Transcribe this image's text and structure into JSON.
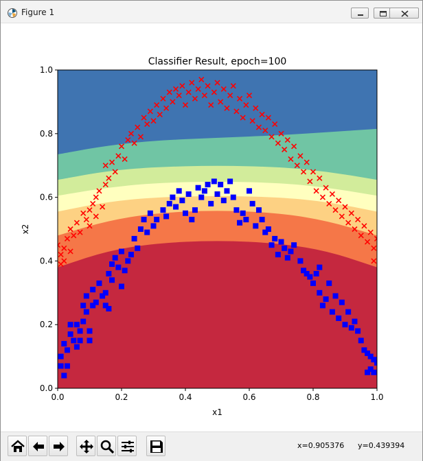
{
  "window": {
    "title": "Figure 1"
  },
  "toolbar": {
    "buttons": [
      "home-icon",
      "back-arrow-icon",
      "forward-arrow-icon",
      "pan-icon",
      "zoom-icon",
      "configure-subplots-icon",
      "save-icon"
    ],
    "coord_x": "x=0.905376",
    "coord_y": "y=0.439394"
  },
  "colors": {
    "class0_marker": "#0000ff",
    "class1_marker": "#ff0000",
    "contour_levels": [
      "#c5283f",
      "#f57748",
      "#fdd183",
      "#ffffbf",
      "#d2ec9b",
      "#70c5a4",
      "#3f74b1"
    ]
  },
  "chart_data": {
    "type": "scatter",
    "title": "Classifier Result, epoch=100",
    "xlabel": "x1",
    "ylabel": "x2",
    "xlim": [
      0.0,
      1.0
    ],
    "ylim": [
      0.0,
      1.0
    ],
    "xticks": [
      "0.0",
      "0.2",
      "0.4",
      "0.6",
      "0.8",
      "1.0"
    ],
    "yticks": [
      "0.0",
      "0.2",
      "0.4",
      "0.6",
      "0.8",
      "1.0"
    ],
    "grid": false,
    "legend": "none",
    "background": "filled decision contour, boundary curves peak near x1=0.5",
    "boundaries": [
      {
        "upper_color": "#f57748",
        "points": [
          [
            0.0,
            0.38
          ],
          [
            0.15,
            0.43
          ],
          [
            0.3,
            0.455
          ],
          [
            0.5,
            0.465
          ],
          [
            0.7,
            0.455
          ],
          [
            0.85,
            0.43
          ],
          [
            1.0,
            0.38
          ]
        ]
      },
      {
        "upper_color": "#fdd183",
        "points": [
          [
            0.0,
            0.48
          ],
          [
            0.15,
            0.525
          ],
          [
            0.3,
            0.55
          ],
          [
            0.5,
            0.56
          ],
          [
            0.7,
            0.55
          ],
          [
            0.85,
            0.525
          ],
          [
            1.0,
            0.48
          ]
        ]
      },
      {
        "upper_color": "#ffffbf",
        "points": [
          [
            0.0,
            0.555
          ],
          [
            0.15,
            0.585
          ],
          [
            0.3,
            0.6
          ],
          [
            0.5,
            0.605
          ],
          [
            0.7,
            0.6
          ],
          [
            0.85,
            0.585
          ],
          [
            1.0,
            0.555
          ]
        ]
      },
      {
        "upper_color": "#d2ec9b",
        "points": [
          [
            0.0,
            0.605
          ],
          [
            0.15,
            0.63
          ],
          [
            0.3,
            0.645
          ],
          [
            0.5,
            0.65
          ],
          [
            0.7,
            0.645
          ],
          [
            0.85,
            0.63
          ],
          [
            1.0,
            0.605
          ]
        ]
      },
      {
        "upper_color": "#70c5a4",
        "points": [
          [
            0.0,
            0.655
          ],
          [
            0.15,
            0.682
          ],
          [
            0.3,
            0.695
          ],
          [
            0.5,
            0.7
          ],
          [
            0.7,
            0.695
          ],
          [
            0.85,
            0.68
          ],
          [
            1.0,
            0.655
          ]
        ]
      },
      {
        "upper_color": "#3f74b1",
        "points": [
          [
            0.0,
            0.735
          ],
          [
            0.15,
            0.762
          ],
          [
            0.3,
            0.778
          ],
          [
            0.5,
            0.787
          ],
          [
            0.7,
            0.795
          ],
          [
            0.85,
            0.805
          ],
          [
            1.0,
            0.815
          ]
        ]
      }
    ],
    "series": [
      {
        "marker": "square",
        "color": "#0000ff",
        "points": [
          [
            0.01,
            0.07
          ],
          [
            0.01,
            0.1
          ],
          [
            0.02,
            0.04
          ],
          [
            0.03,
            0.07
          ],
          [
            0.02,
            0.14
          ],
          [
            0.03,
            0.12
          ],
          [
            0.04,
            0.17
          ],
          [
            0.05,
            0.15
          ],
          [
            0.04,
            0.2
          ],
          [
            0.06,
            0.13
          ],
          [
            0.06,
            0.2
          ],
          [
            0.07,
            0.18
          ],
          [
            0.07,
            0.15
          ],
          [
            0.08,
            0.21
          ],
          [
            0.08,
            0.26
          ],
          [
            0.09,
            0.24
          ],
          [
            0.1,
            0.15
          ],
          [
            0.1,
            0.18
          ],
          [
            0.09,
            0.29
          ],
          [
            0.11,
            0.26
          ],
          [
            0.11,
            0.31
          ],
          [
            0.12,
            0.27
          ],
          [
            0.13,
            0.33
          ],
          [
            0.14,
            0.29
          ],
          [
            0.15,
            0.26
          ],
          [
            0.15,
            0.3
          ],
          [
            0.16,
            0.36
          ],
          [
            0.16,
            0.25
          ],
          [
            0.17,
            0.39
          ],
          [
            0.17,
            0.34
          ],
          [
            0.18,
            0.41
          ],
          [
            0.19,
            0.38
          ],
          [
            0.2,
            0.43
          ],
          [
            0.2,
            0.32
          ],
          [
            0.21,
            0.37
          ],
          [
            0.22,
            0.4
          ],
          [
            0.23,
            0.42
          ],
          [
            0.24,
            0.47
          ],
          [
            0.25,
            0.44
          ],
          [
            0.26,
            0.5
          ],
          [
            0.27,
            0.53
          ],
          [
            0.28,
            0.49
          ],
          [
            0.29,
            0.55
          ],
          [
            0.3,
            0.51
          ],
          [
            0.31,
            0.53
          ],
          [
            0.33,
            0.56
          ],
          [
            0.34,
            0.54
          ],
          [
            0.35,
            0.58
          ],
          [
            0.36,
            0.6
          ],
          [
            0.37,
            0.57
          ],
          [
            0.38,
            0.62
          ],
          [
            0.39,
            0.59
          ],
          [
            0.4,
            0.55
          ],
          [
            0.41,
            0.61
          ],
          [
            0.42,
            0.53
          ],
          [
            0.43,
            0.56
          ],
          [
            0.44,
            0.63
          ],
          [
            0.45,
            0.6
          ],
          [
            0.46,
            0.62
          ],
          [
            0.47,
            0.64
          ],
          [
            0.48,
            0.58
          ],
          [
            0.49,
            0.65
          ],
          [
            0.5,
            0.61
          ],
          [
            0.51,
            0.64
          ],
          [
            0.52,
            0.59
          ],
          [
            0.53,
            0.62
          ],
          [
            0.54,
            0.65
          ],
          [
            0.55,
            0.6
          ],
          [
            0.56,
            0.56
          ],
          [
            0.57,
            0.52
          ],
          [
            0.58,
            0.55
          ],
          [
            0.59,
            0.53
          ],
          [
            0.6,
            0.62
          ],
          [
            0.61,
            0.58
          ],
          [
            0.62,
            0.51
          ],
          [
            0.63,
            0.56
          ],
          [
            0.64,
            0.53
          ],
          [
            0.65,
            0.49
          ],
          [
            0.66,
            0.5
          ],
          [
            0.67,
            0.45
          ],
          [
            0.68,
            0.47
          ],
          [
            0.69,
            0.42
          ],
          [
            0.7,
            0.46
          ],
          [
            0.71,
            0.44
          ],
          [
            0.72,
            0.41
          ],
          [
            0.73,
            0.43
          ],
          [
            0.74,
            0.45
          ],
          [
            0.76,
            0.4
          ],
          [
            0.77,
            0.37
          ],
          [
            0.78,
            0.36
          ],
          [
            0.79,
            0.35
          ],
          [
            0.8,
            0.33
          ],
          [
            0.81,
            0.36
          ],
          [
            0.82,
            0.3
          ],
          [
            0.82,
            0.38
          ],
          [
            0.83,
            0.26
          ],
          [
            0.84,
            0.28
          ],
          [
            0.85,
            0.33
          ],
          [
            0.86,
            0.24
          ],
          [
            0.87,
            0.29
          ],
          [
            0.88,
            0.22
          ],
          [
            0.89,
            0.27
          ],
          [
            0.9,
            0.2
          ],
          [
            0.91,
            0.24
          ],
          [
            0.92,
            0.19
          ],
          [
            0.93,
            0.21
          ],
          [
            0.94,
            0.18
          ],
          [
            0.95,
            0.15
          ],
          [
            0.96,
            0.12
          ],
          [
            0.97,
            0.11
          ],
          [
            0.98,
            0.1
          ],
          [
            0.99,
            0.09
          ],
          [
            0.97,
            0.05
          ],
          [
            0.98,
            0.06
          ],
          [
            1.0,
            0.08
          ],
          [
            0.99,
            0.05
          ]
        ]
      },
      {
        "marker": "x",
        "color": "#ff0000",
        "points": [
          [
            0.0,
            0.45
          ],
          [
            0.01,
            0.39
          ],
          [
            0.01,
            0.42
          ],
          [
            0.02,
            0.4
          ],
          [
            0.02,
            0.44
          ],
          [
            0.03,
            0.47
          ],
          [
            0.04,
            0.43
          ],
          [
            0.04,
            0.5
          ],
          [
            0.05,
            0.48
          ],
          [
            0.06,
            0.52
          ],
          [
            0.07,
            0.49
          ],
          [
            0.08,
            0.55
          ],
          [
            0.09,
            0.53
          ],
          [
            0.1,
            0.56
          ],
          [
            0.1,
            0.51
          ],
          [
            0.11,
            0.58
          ],
          [
            0.12,
            0.6
          ],
          [
            0.12,
            0.54
          ],
          [
            0.13,
            0.62
          ],
          [
            0.14,
            0.57
          ],
          [
            0.15,
            0.64
          ],
          [
            0.15,
            0.7
          ],
          [
            0.16,
            0.66
          ],
          [
            0.17,
            0.71
          ],
          [
            0.18,
            0.68
          ],
          [
            0.19,
            0.73
          ],
          [
            0.2,
            0.76
          ],
          [
            0.21,
            0.72
          ],
          [
            0.22,
            0.78
          ],
          [
            0.23,
            0.8
          ],
          [
            0.24,
            0.77
          ],
          [
            0.25,
            0.82
          ],
          [
            0.26,
            0.79
          ],
          [
            0.27,
            0.85
          ],
          [
            0.28,
            0.83
          ],
          [
            0.29,
            0.87
          ],
          [
            0.3,
            0.84
          ],
          [
            0.31,
            0.89
          ],
          [
            0.32,
            0.86
          ],
          [
            0.33,
            0.91
          ],
          [
            0.34,
            0.88
          ],
          [
            0.35,
            0.93
          ],
          [
            0.36,
            0.9
          ],
          [
            0.37,
            0.94
          ],
          [
            0.38,
            0.92
          ],
          [
            0.39,
            0.95
          ],
          [
            0.4,
            0.89
          ],
          [
            0.41,
            0.93
          ],
          [
            0.42,
            0.96
          ],
          [
            0.43,
            0.91
          ],
          [
            0.44,
            0.94
          ],
          [
            0.45,
            0.97
          ],
          [
            0.46,
            0.92
          ],
          [
            0.47,
            0.95
          ],
          [
            0.48,
            0.89
          ],
          [
            0.49,
            0.93
          ],
          [
            0.5,
            0.96
          ],
          [
            0.51,
            0.9
          ],
          [
            0.52,
            0.94
          ],
          [
            0.53,
            0.88
          ],
          [
            0.54,
            0.92
          ],
          [
            0.55,
            0.95
          ],
          [
            0.56,
            0.87
          ],
          [
            0.57,
            0.91
          ],
          [
            0.58,
            0.85
          ],
          [
            0.59,
            0.89
          ],
          [
            0.6,
            0.92
          ],
          [
            0.61,
            0.84
          ],
          [
            0.62,
            0.88
          ],
          [
            0.63,
            0.82
          ],
          [
            0.64,
            0.86
          ],
          [
            0.65,
            0.81
          ],
          [
            0.66,
            0.85
          ],
          [
            0.67,
            0.79
          ],
          [
            0.68,
            0.83
          ],
          [
            0.69,
            0.77
          ],
          [
            0.7,
            0.8
          ],
          [
            0.71,
            0.75
          ],
          [
            0.72,
            0.78
          ],
          [
            0.73,
            0.72
          ],
          [
            0.74,
            0.76
          ],
          [
            0.75,
            0.7
          ],
          [
            0.76,
            0.73
          ],
          [
            0.77,
            0.68
          ],
          [
            0.78,
            0.71
          ],
          [
            0.79,
            0.65
          ],
          [
            0.8,
            0.68
          ],
          [
            0.81,
            0.62
          ],
          [
            0.82,
            0.66
          ],
          [
            0.83,
            0.6
          ],
          [
            0.84,
            0.63
          ],
          [
            0.85,
            0.58
          ],
          [
            0.86,
            0.61
          ],
          [
            0.87,
            0.56
          ],
          [
            0.88,
            0.59
          ],
          [
            0.89,
            0.54
          ],
          [
            0.9,
            0.57
          ],
          [
            0.91,
            0.52
          ],
          [
            0.92,
            0.55
          ],
          [
            0.93,
            0.5
          ],
          [
            0.94,
            0.53
          ],
          [
            0.95,
            0.48
          ],
          [
            0.96,
            0.51
          ],
          [
            0.97,
            0.46
          ],
          [
            0.98,
            0.49
          ],
          [
            0.99,
            0.44
          ],
          [
            1.0,
            0.47
          ],
          [
            0.99,
            0.4
          ]
        ]
      }
    ]
  }
}
